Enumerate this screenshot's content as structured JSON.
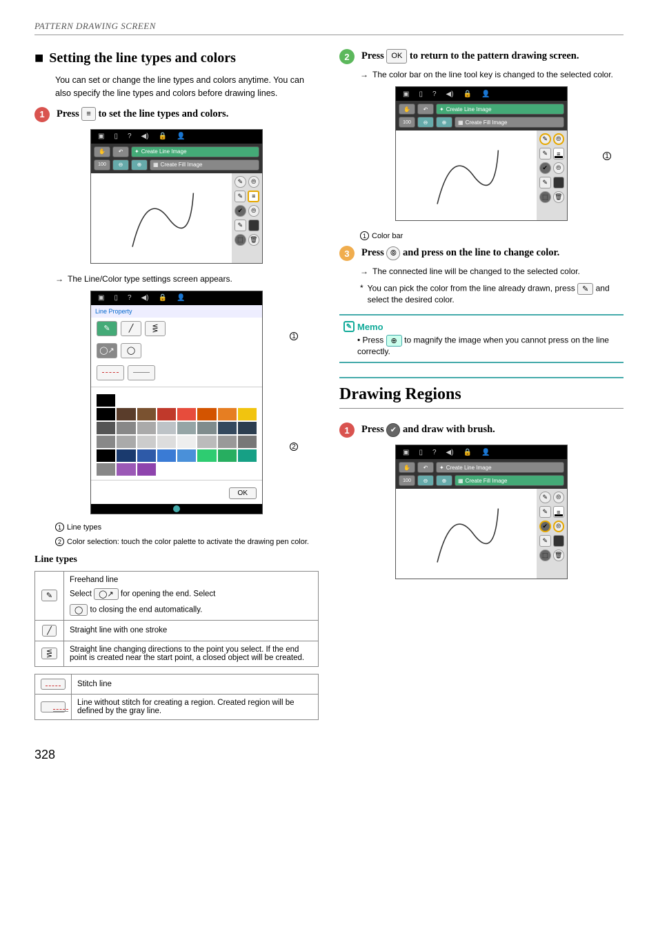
{
  "header": "PATTERN DRAWING SCREEN",
  "page_number": "328",
  "left": {
    "section_title": "Setting the line types and colors",
    "intro": "You can set or change the line types and colors anytime. You can also specify the line types and colors before drawing lines.",
    "step1": {
      "pre": "Press ",
      "key": "≡",
      "post": " to set the line types and colors."
    },
    "screenshot1": {
      "tabs": {
        "create_line": "Create Line Image",
        "create_fill": "Create Fill Image"
      }
    },
    "arrow1": "The Line/Color type settings screen appears.",
    "prop_screen": {
      "header": "Line Property",
      "ok": "OK",
      "swatches": [
        "#000000",
        "#000000",
        "#5a3d2b",
        "#7a5230",
        "#c0392b",
        "#e74c3c",
        "#d35400",
        "#e67e22",
        "#f1c40f",
        "#555555",
        "#888888",
        "#aaaaaa",
        "#bdc3c7",
        "#95a5a6",
        "#7f8c8d",
        "#34495e",
        "#2c3e50",
        "#888888",
        "#aaaaaa",
        "#cccccc",
        "#dddddd",
        "#eeeeee",
        "#bbbbbb",
        "#999999",
        "#777777",
        "#000000",
        "#1a3a6e",
        "#2e5aa8",
        "#3a7bd5",
        "#4a90d9",
        "#2ecc71",
        "#27ae60",
        "#16a085",
        "#888888",
        "#9b59b6",
        "#8e44ad"
      ]
    },
    "callout1": "Line types",
    "callout2": "Color selection: touch the color palette to activate the drawing pen color.",
    "subsection": "Line types",
    "table1": [
      {
        "icon": "✎",
        "text_pre": "Freehand line",
        "text_mid1": "Select ",
        "key1": "◯↗",
        "text_mid2": " for opening the end. Select",
        "key2": "◯",
        "text_post": " to closing the end automatically."
      },
      {
        "icon": "╱",
        "text": "Straight line with one stroke"
      },
      {
        "icon": "⋚",
        "text": "Straight line changing directions to the point you select. If the end point is created near the start point, a closed object will be created."
      }
    ],
    "table2": [
      {
        "icon_style": "dashed",
        "text": "Stitch line"
      },
      {
        "icon_style": "mixed",
        "text": "Line without stitch for creating a region. Created region will be defined by the gray line."
      }
    ]
  },
  "right": {
    "step2": {
      "pre": "Press ",
      "key": "OK",
      "post": " to return to the pattern drawing screen."
    },
    "arrow2": "The color bar on the line tool key is changed to the selected color.",
    "screenshot2": {
      "tabs": {
        "create_line": "Create Line Image",
        "create_fill": "Create Fill Image"
      }
    },
    "callout_colorbar": "Color bar",
    "step3": {
      "pre": "Press ",
      "key": "⦾",
      "post": " and press on the line to change color."
    },
    "arrow3": "The connected line will be changed to the selected color.",
    "star_note_pre": "You can pick the color from the line already drawn, press ",
    "star_note_key": "✎",
    "star_note_post": " and select the desired color.",
    "memo": {
      "title": "Memo",
      "bullet_pre": "• Press ",
      "bullet_key": "⊕",
      "bullet_post": " to magnify the image when you cannot press on the line correctly."
    },
    "h2": "Drawing Regions",
    "step1b": {
      "pre": "Press ",
      "key": "✔",
      "post": " and draw with brush."
    },
    "screenshot3": {
      "tabs": {
        "create_line": "Create Line Image",
        "create_fill": "Create Fill Image"
      }
    }
  }
}
